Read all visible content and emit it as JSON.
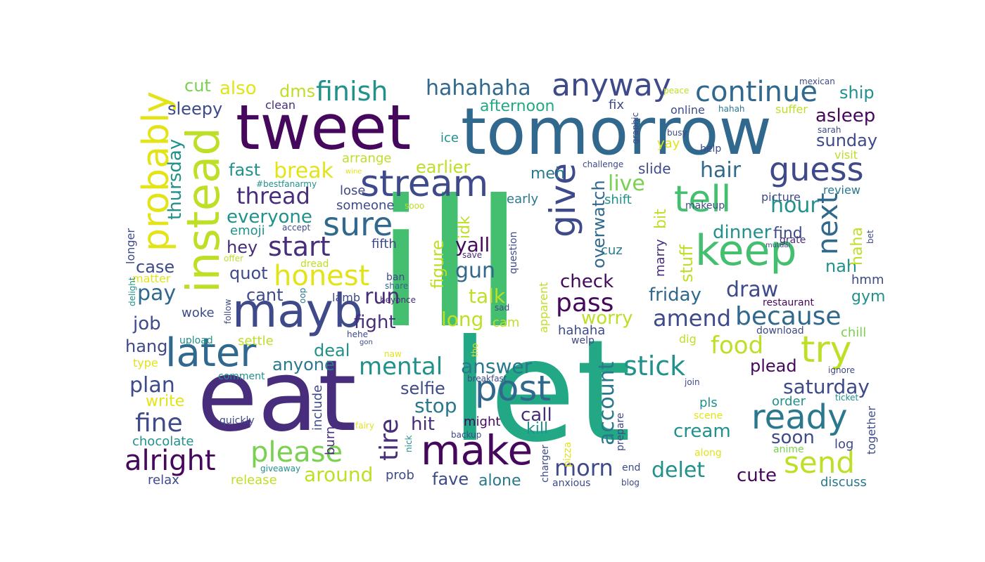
{
  "palette": {
    "dark_purple": "#46085c",
    "purple": "#472d7b",
    "indigo": "#3e4a89",
    "blue": "#31688e",
    "teal_blue": "#2a788e",
    "teal": "#21918c",
    "sea_green": "#22a884",
    "green": "#44bf70",
    "light_green": "#7ad151",
    "yellow_green": "#bddf26",
    "yellow": "#e2e418"
  },
  "words": [
    {
      "text": "ill",
      "color": "green"
    },
    {
      "text": "let",
      "color": "sea_green"
    },
    {
      "text": "eat",
      "color": "purple"
    },
    {
      "text": "tomorrow",
      "color": "blue"
    },
    {
      "text": "tweet",
      "color": "dark_purple"
    },
    {
      "text": "instead",
      "color": "yellow_green"
    },
    {
      "text": "mayb",
      "color": "indigo"
    },
    {
      "text": "make",
      "color": "dark_purple"
    },
    {
      "text": "keep",
      "color": "green"
    },
    {
      "text": "later",
      "color": "blue"
    },
    {
      "text": "probably",
      "color": "yellow"
    },
    {
      "text": "stream",
      "color": "indigo"
    },
    {
      "text": "tell",
      "color": "green"
    },
    {
      "text": "give",
      "color": "indigo"
    },
    {
      "text": "post",
      "color": "blue"
    },
    {
      "text": "guess",
      "color": "indigo"
    },
    {
      "text": "anyway",
      "color": "indigo"
    },
    {
      "text": "continue",
      "color": "blue"
    },
    {
      "text": "try",
      "color": "yellow_green"
    },
    {
      "text": "ready",
      "color": "teal_blue"
    },
    {
      "text": "send",
      "color": "yellow_green"
    },
    {
      "text": "next",
      "color": "blue"
    },
    {
      "text": "sure",
      "color": "blue"
    },
    {
      "text": "alright",
      "color": "dark_purple"
    },
    {
      "text": "please",
      "color": "light_green"
    },
    {
      "text": "honest",
      "color": "yellow"
    },
    {
      "text": "start",
      "color": "purple"
    },
    {
      "text": "finish",
      "color": "teal"
    },
    {
      "text": "hahahaha",
      "color": "blue"
    },
    {
      "text": "mental",
      "color": "teal"
    },
    {
      "text": "thread",
      "color": "purple"
    },
    {
      "text": "fine",
      "color": "indigo"
    },
    {
      "text": "tire",
      "color": "purple"
    },
    {
      "text": "pass",
      "color": "dark_purple"
    },
    {
      "text": "stick",
      "color": "teal"
    },
    {
      "text": "because",
      "color": "blue"
    },
    {
      "text": "morn",
      "color": "indigo"
    },
    {
      "text": "food",
      "color": "yellow_green"
    },
    {
      "text": "amend",
      "color": "indigo"
    },
    {
      "text": "hair",
      "color": "blue"
    },
    {
      "text": "break",
      "color": "yellow"
    },
    {
      "text": "run",
      "color": "purple"
    },
    {
      "text": "answer",
      "color": "teal_blue"
    },
    {
      "text": "delet",
      "color": "teal"
    },
    {
      "text": "thursday",
      "color": "teal"
    },
    {
      "text": "plan",
      "color": "indigo"
    },
    {
      "text": "live",
      "color": "light_green"
    },
    {
      "text": "hour",
      "color": "teal"
    },
    {
      "text": "around",
      "color": "yellow_green"
    },
    {
      "text": "pay",
      "color": "blue"
    },
    {
      "text": "draw",
      "color": "indigo"
    },
    {
      "text": "stop",
      "color": "teal_blue"
    },
    {
      "text": "account",
      "color": "teal_blue"
    },
    {
      "text": "saturday",
      "color": "indigo"
    },
    {
      "text": "everyone",
      "color": "teal"
    },
    {
      "text": "also",
      "color": "yellow"
    },
    {
      "text": "dinner",
      "color": "teal"
    },
    {
      "text": "overwatch",
      "color": "blue"
    },
    {
      "text": "talk",
      "color": "yellow_green"
    },
    {
      "text": "gun",
      "color": "blue"
    },
    {
      "text": "yall",
      "color": "dark_purple"
    },
    {
      "text": "long",
      "color": "yellow_green"
    },
    {
      "text": "worry",
      "color": "yellow_green"
    },
    {
      "text": "cream",
      "color": "teal"
    },
    {
      "text": "check",
      "color": "dark_purple"
    },
    {
      "text": "soon",
      "color": "indigo"
    },
    {
      "text": "friday",
      "color": "blue"
    },
    {
      "text": "afternoon",
      "color": "sea_green"
    },
    {
      "text": "asleep",
      "color": "dark_purple"
    },
    {
      "text": "sunday",
      "color": "indigo"
    },
    {
      "text": "sleepy",
      "color": "indigo"
    },
    {
      "text": "job",
      "color": "indigo"
    },
    {
      "text": "hit",
      "color": "purple"
    },
    {
      "text": "fight",
      "color": "purple"
    },
    {
      "text": "earlier",
      "color": "yellow_green"
    },
    {
      "text": "fast",
      "color": "teal"
    },
    {
      "text": "call",
      "color": "purple"
    },
    {
      "text": "cute",
      "color": "dark_purple"
    },
    {
      "text": "anyone",
      "color": "teal_blue"
    },
    {
      "text": "deal",
      "color": "teal"
    },
    {
      "text": "plead",
      "color": "dark_purple"
    },
    {
      "text": "figure",
      "color": "yellow_green"
    },
    {
      "text": "selfie",
      "color": "indigo"
    },
    {
      "text": "stuff",
      "color": "yellow_green"
    },
    {
      "text": "dms",
      "color": "yellow_green"
    },
    {
      "text": "cut",
      "color": "light_green"
    },
    {
      "text": "ship",
      "color": "teal"
    },
    {
      "text": "nah",
      "color": "teal"
    },
    {
      "text": "hey",
      "color": "purple"
    },
    {
      "text": "meh",
      "color": "teal_blue"
    },
    {
      "text": "haha",
      "color": "yellow_green"
    },
    {
      "text": "quot",
      "color": "indigo"
    },
    {
      "text": "cant",
      "color": "indigo"
    },
    {
      "text": "case",
      "color": "indigo"
    },
    {
      "text": "fave",
      "color": "indigo"
    },
    {
      "text": "alone",
      "color": "teal_blue"
    },
    {
      "text": "slide",
      "color": "indigo"
    },
    {
      "text": "hang",
      "color": "indigo"
    },
    {
      "text": "kill",
      "color": "teal"
    },
    {
      "text": "find",
      "color": "indigo"
    },
    {
      "text": "gym",
      "color": "teal"
    },
    {
      "text": "idk",
      "color": "yellow_green"
    },
    {
      "text": "write",
      "color": "yellow"
    },
    {
      "text": "hmm",
      "color": "indigo"
    },
    {
      "text": "cuz",
      "color": "teal_blue"
    },
    {
      "text": "include",
      "color": "indigo"
    },
    {
      "text": "burn",
      "color": "purple"
    },
    {
      "text": "marry",
      "color": "purple"
    },
    {
      "text": "bit",
      "color": "yellow_green"
    },
    {
      "text": "log",
      "color": "indigo"
    },
    {
      "text": "pls",
      "color": "teal"
    },
    {
      "text": "order",
      "color": "teal"
    },
    {
      "text": "together",
      "color": "indigo"
    },
    {
      "text": "hahaha",
      "color": "indigo"
    },
    {
      "text": "apparent",
      "color": "yellow_green"
    },
    {
      "text": "might",
      "color": "dark_purple"
    },
    {
      "text": "chill",
      "color": "light_green"
    },
    {
      "text": "chocolate",
      "color": "teal"
    },
    {
      "text": "relax",
      "color": "indigo"
    },
    {
      "text": "release",
      "color": "yellow_green"
    },
    {
      "text": "prob",
      "color": "indigo"
    },
    {
      "text": "discuss",
      "color": "teal_blue"
    },
    {
      "text": "woke",
      "color": "indigo"
    },
    {
      "text": "settle",
      "color": "yellow_green"
    },
    {
      "text": "emoji",
      "color": "teal"
    },
    {
      "text": "fifth",
      "color": "indigo"
    },
    {
      "text": "lose",
      "color": "indigo"
    },
    {
      "text": "someone",
      "color": "indigo"
    },
    {
      "text": "early",
      "color": "teal_blue"
    },
    {
      "text": "shift",
      "color": "teal"
    },
    {
      "text": "cam",
      "color": "yellow_green"
    },
    {
      "text": "clean",
      "color": "purple"
    },
    {
      "text": "fix",
      "color": "indigo"
    },
    {
      "text": "ice",
      "color": "teal"
    },
    {
      "text": "arrange",
      "color": "yellow_green"
    },
    {
      "text": "yay",
      "color": "yellow"
    },
    {
      "text": "online",
      "color": "indigo"
    },
    {
      "text": "suffer",
      "color": "yellow_green"
    },
    {
      "text": "visit",
      "color": "yellow_green"
    },
    {
      "text": "picture",
      "color": "indigo"
    },
    {
      "text": "review",
      "color": "teal_blue"
    },
    {
      "text": "longer",
      "color": "indigo"
    },
    {
      "text": "restaurant",
      "color": "dark_purple"
    },
    {
      "text": "dig",
      "color": "yellow_green"
    },
    {
      "text": "question",
      "color": "indigo"
    },
    {
      "text": "grate",
      "color": "purple"
    },
    {
      "text": "matter",
      "color": "yellow"
    },
    {
      "text": "delight",
      "color": "teal"
    },
    {
      "text": "follow",
      "color": "indigo"
    },
    {
      "text": "oop",
      "color": "teal_blue"
    },
    {
      "text": "lamb",
      "color": "indigo"
    },
    {
      "text": "beyonce",
      "color": "purple"
    },
    {
      "text": "sad",
      "color": "indigo"
    },
    {
      "text": "ban",
      "color": "indigo"
    },
    {
      "text": "share",
      "color": "blue"
    },
    {
      "text": "dread",
      "color": "yellow_green"
    },
    {
      "text": "offer",
      "color": "yellow_green"
    },
    {
      "text": "save",
      "color": "purple"
    },
    {
      "text": "upload",
      "color": "teal"
    },
    {
      "text": "type",
      "color": "yellow"
    },
    {
      "text": "comment",
      "color": "teal"
    },
    {
      "text": "hehe",
      "color": "indigo"
    },
    {
      "text": "gon",
      "color": "indigo"
    },
    {
      "text": "naw",
      "color": "yellow"
    },
    {
      "text": "tho",
      "color": "yellow"
    },
    {
      "text": "breakfast",
      "color": "indigo"
    },
    {
      "text": "quickly",
      "color": "indigo"
    },
    {
      "text": "fairy",
      "color": "yellow"
    },
    {
      "text": "backup",
      "color": "indigo"
    },
    {
      "text": "nick",
      "color": "teal"
    },
    {
      "text": "pizza",
      "color": "yellow"
    },
    {
      "text": "charger",
      "color": "indigo"
    },
    {
      "text": "anxious",
      "color": "indigo"
    },
    {
      "text": "giveaway",
      "color": "teal"
    },
    {
      "text": "blog",
      "color": "indigo"
    },
    {
      "text": "end",
      "color": "indigo"
    },
    {
      "text": "prepare",
      "color": "indigo"
    },
    {
      "text": "along",
      "color": "yellow"
    },
    {
      "text": "scene",
      "color": "yellow"
    },
    {
      "text": "join",
      "color": "indigo"
    },
    {
      "text": "anime",
      "color": "light_green"
    },
    {
      "text": "ticket",
      "color": "teal"
    },
    {
      "text": "ignore",
      "color": "indigo"
    },
    {
      "text": "download",
      "color": "indigo"
    },
    {
      "text": "welp",
      "color": "indigo"
    },
    {
      "text": "mutual",
      "color": "indigo"
    },
    {
      "text": "bet",
      "color": "indigo"
    },
    {
      "text": "makeup",
      "color": "indigo"
    },
    {
      "text": "challenge",
      "color": "indigo"
    },
    {
      "text": "help",
      "color": "indigo"
    },
    {
      "text": "busy",
      "color": "indigo"
    },
    {
      "text": "sarah",
      "color": "indigo"
    },
    {
      "text": "hahah",
      "color": "teal_blue"
    },
    {
      "text": "graphic",
      "color": "indigo"
    },
    {
      "text": "peace",
      "color": "yellow_green"
    },
    {
      "text": "mexican",
      "color": "indigo"
    },
    {
      "text": "wine",
      "color": "yellow"
    },
    {
      "text": "#bestfanarmy",
      "color": "teal"
    },
    {
      "text": "accept",
      "color": "indigo"
    },
    {
      "text": "sooo",
      "color": "yellow_green"
    }
  ]
}
